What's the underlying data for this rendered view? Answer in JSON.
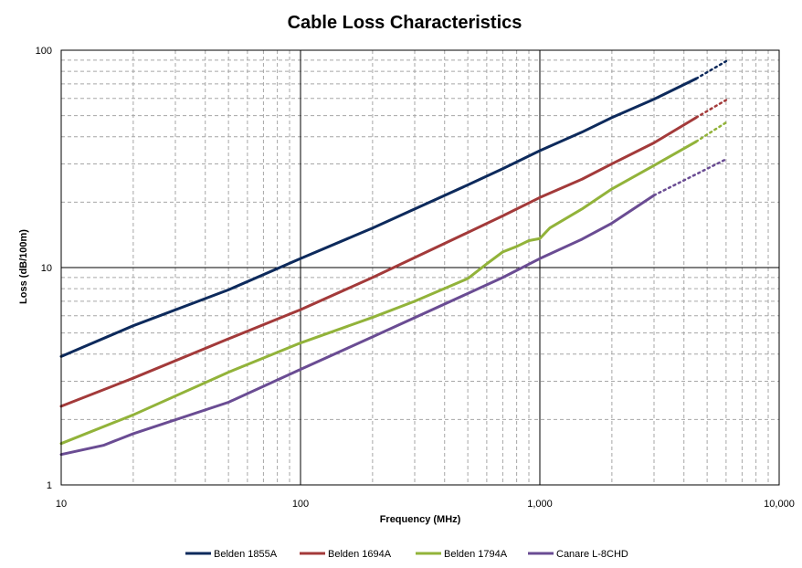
{
  "chart_data": {
    "type": "line",
    "title": "Cable Loss Characteristics",
    "xlabel": "Frequency (MHz)",
    "ylabel": "Loss (dB/100m)",
    "x_scale": "log",
    "y_scale": "log",
    "xlim": [
      10,
      10000
    ],
    "ylim": [
      1,
      100
    ],
    "x_ticks": [
      {
        "value": 10,
        "label": "10"
      },
      {
        "value": 100,
        "label": "100"
      },
      {
        "value": 1000,
        "label": "1,000"
      },
      {
        "value": 10000,
        "label": "10,000"
      }
    ],
    "y_ticks": [
      {
        "value": 1,
        "label": "1"
      },
      {
        "value": 10,
        "label": "10"
      },
      {
        "value": 100,
        "label": "100"
      }
    ],
    "grid": {
      "major": true,
      "minor": true,
      "minor_style": "dashed"
    },
    "legend_position": "bottom",
    "series": [
      {
        "name": "Belden 1855A",
        "color": "#0d2a5c",
        "points": [
          [
            10,
            3.9
          ],
          [
            20,
            5.4
          ],
          [
            50,
            7.9
          ],
          [
            100,
            11.0
          ],
          [
            200,
            15.2
          ],
          [
            500,
            24.0
          ],
          [
            700,
            28.5
          ],
          [
            1000,
            34.5
          ],
          [
            1500,
            42.0
          ],
          [
            2000,
            49.0
          ],
          [
            3000,
            59.5
          ],
          [
            4500,
            74.0
          ]
        ],
        "extrapolated": [
          [
            4500,
            74.0
          ],
          [
            6000,
            89.0
          ]
        ]
      },
      {
        "name": "Belden 1694A",
        "color": "#a33a3a",
        "points": [
          [
            10,
            2.3
          ],
          [
            20,
            3.1
          ],
          [
            50,
            4.7
          ],
          [
            100,
            6.4
          ],
          [
            200,
            9.0
          ],
          [
            500,
            14.5
          ],
          [
            700,
            17.3
          ],
          [
            1000,
            21.0
          ],
          [
            1500,
            25.5
          ],
          [
            2000,
            30.0
          ],
          [
            3000,
            37.5
          ],
          [
            4500,
            49.0
          ]
        ],
        "extrapolated": [
          [
            4500,
            49.0
          ],
          [
            6000,
            59.0
          ]
        ]
      },
      {
        "name": "Belden 1794A",
        "color": "#92b33a",
        "points": [
          [
            10,
            1.55
          ],
          [
            20,
            2.1
          ],
          [
            50,
            3.3
          ],
          [
            100,
            4.5
          ],
          [
            200,
            5.9
          ],
          [
            300,
            7.0
          ],
          [
            500,
            8.9
          ],
          [
            600,
            10.4
          ],
          [
            700,
            11.8
          ],
          [
            800,
            12.5
          ],
          [
            900,
            13.3
          ],
          [
            1000,
            13.6
          ],
          [
            1100,
            15.2
          ],
          [
            1500,
            18.6
          ],
          [
            2000,
            23.0
          ],
          [
            3000,
            29.5
          ],
          [
            4500,
            38.0
          ]
        ],
        "extrapolated": [
          [
            4500,
            38.0
          ],
          [
            6000,
            46.5
          ]
        ]
      },
      {
        "name": "Canare L-8CHD",
        "color": "#6a4c93",
        "points": [
          [
            10,
            1.38
          ],
          [
            15,
            1.52
          ],
          [
            20,
            1.72
          ],
          [
            50,
            2.4
          ],
          [
            100,
            3.4
          ],
          [
            200,
            4.8
          ],
          [
            500,
            7.6
          ],
          [
            700,
            9.0
          ],
          [
            1000,
            11.0
          ],
          [
            1500,
            13.5
          ],
          [
            2000,
            16.0
          ],
          [
            3000,
            21.5
          ]
        ],
        "extrapolated": [
          [
            3000,
            21.5
          ],
          [
            6000,
            31.5
          ]
        ]
      }
    ]
  }
}
